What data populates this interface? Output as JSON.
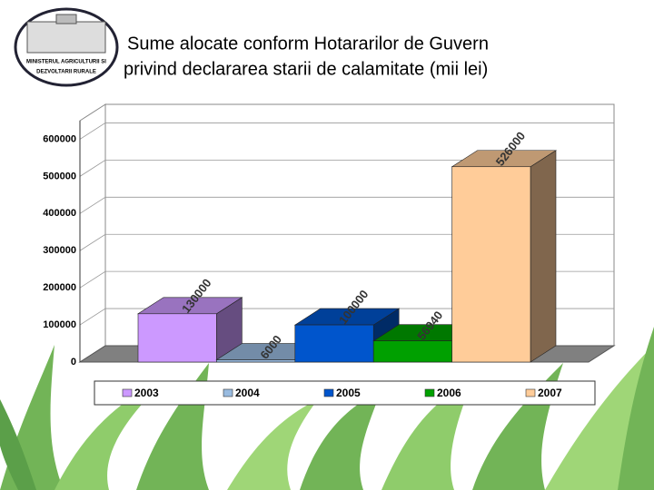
{
  "logo": {
    "lines": [
      "MINISTERUL AGRICULTURII SI",
      "DEZVOLTARII RURALE"
    ]
  },
  "chart_data": {
    "type": "bar3d",
    "title_lines": [
      "Sume alocate conform Hotararilor de Guvern",
      "privind declararea starii de calamitate (mii lei)"
    ],
    "series": [
      {
        "name": "2003",
        "color": "#cc99ff",
        "values": [
          130000
        ]
      },
      {
        "name": "2004",
        "color": "#99bbe0",
        "values": [
          6000
        ]
      },
      {
        "name": "2005",
        "color": "#0055cc",
        "values": [
          100000
        ]
      },
      {
        "name": "2006",
        "color": "#00a000",
        "values": [
          56940
        ]
      },
      {
        "name": "2007",
        "color": "#ffcc99",
        "values": [
          526000
        ]
      }
    ],
    "ylim": [
      0,
      650000
    ],
    "yticks": [
      0,
      100000,
      200000,
      300000,
      400000,
      500000,
      600000
    ],
    "grid": true,
    "legend": "bottom"
  }
}
